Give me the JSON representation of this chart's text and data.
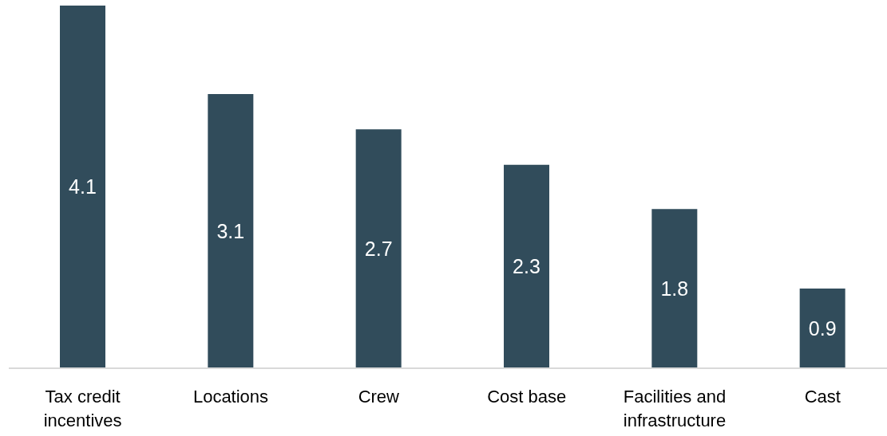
{
  "chart_data": {
    "type": "bar",
    "categories": [
      "Tax credit incentives",
      "Locations",
      "Crew",
      "Cost base",
      "Facilities and infrastructure",
      "Cast"
    ],
    "values": [
      4.1,
      3.1,
      2.7,
      2.3,
      1.8,
      0.9
    ],
    "color": "#314c5b",
    "data_labels": true,
    "tick_labels": "x"
  }
}
